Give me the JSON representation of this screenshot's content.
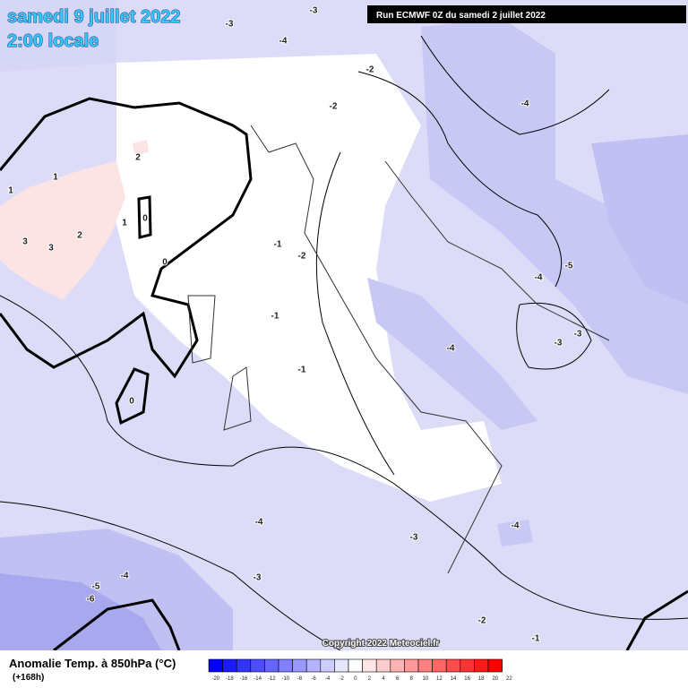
{
  "header": {
    "date": "samedi 9 juillet 2022",
    "time": "2:00 locale",
    "run": "Run ECMWF 0Z du samedi 2 juillet 2022"
  },
  "contour_labels": [
    "-3",
    "-3",
    "-4",
    "-2",
    "-2",
    "-4",
    "2",
    "1",
    "1",
    "0",
    "1",
    "3",
    "3",
    "2",
    "0",
    "-1",
    "-2",
    "-5",
    "-4",
    "-1",
    "-3",
    "-3",
    "-4",
    "-1",
    "0",
    "-4",
    "-4",
    "-3",
    "-4",
    "-3",
    "-5",
    "-6",
    "-2",
    "-1"
  ],
  "copyright": "Copyright 2022 Meteociel.fr",
  "footer": {
    "title": "Anomalie Temp. à 850hPa (°C)",
    "lead": "(+168h)"
  },
  "legend": {
    "ticks": [
      -20,
      -18,
      -16,
      -14,
      -12,
      -10,
      -8,
      -6,
      -4,
      -2,
      0,
      2,
      4,
      6,
      8,
      10,
      12,
      14,
      16,
      18,
      20,
      22
    ],
    "colors": [
      "#0000ff",
      "#1a1aff",
      "#3333ff",
      "#4d4dff",
      "#6666ff",
      "#8080ff",
      "#9999ff",
      "#b3b3ff",
      "#ccccff",
      "#e6e6ff",
      "#ffffff",
      "#ffe6e6",
      "#ffcccc",
      "#ffb3b3",
      "#ff9999",
      "#ff8080",
      "#ff6666",
      "#ff4d4d",
      "#ff3333",
      "#ff1a1a",
      "#ff0000"
    ]
  }
}
